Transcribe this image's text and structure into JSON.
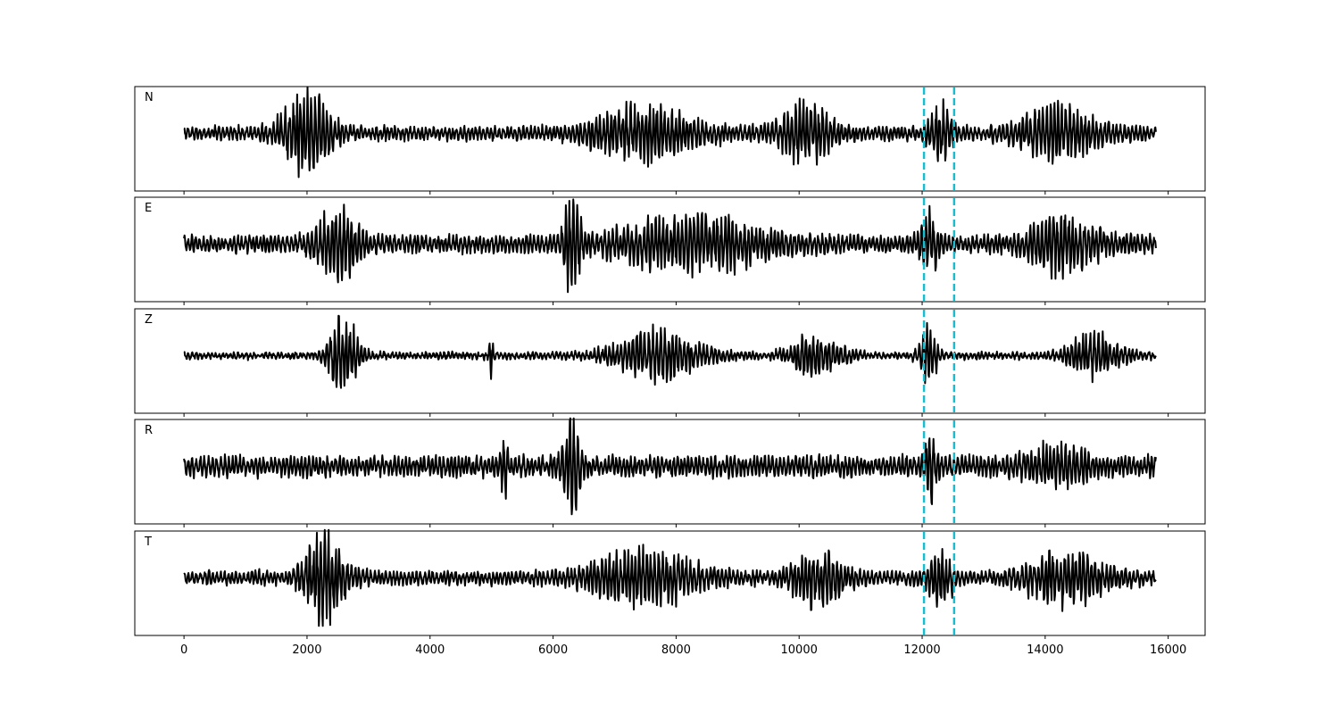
{
  "chart_data": {
    "type": "line",
    "title": "",
    "xlabel": "",
    "ylabel": "",
    "xlim": [
      -800,
      16600
    ],
    "xticks": [
      0,
      2000,
      4000,
      6000,
      8000,
      10000,
      12000,
      14000,
      16000
    ],
    "xtick_labels": [
      "0",
      "2000",
      "4000",
      "6000",
      "8000",
      "10000",
      "12000",
      "14000",
      "16000"
    ],
    "x_range": [
      0,
      15800
    ],
    "grid": false,
    "line_color": "#000000",
    "marker_color": "#17becf",
    "markers": [
      12030,
      12520
    ],
    "panels": [
      {
        "name": "N",
        "noise": 0.13,
        "bursts": [
          {
            "x": 2000,
            "w": 800,
            "amp": 0.75
          },
          {
            "x": 7500,
            "w": 1800,
            "amp": 0.45
          },
          {
            "x": 10100,
            "w": 900,
            "amp": 0.5
          },
          {
            "x": 12300,
            "w": 400,
            "amp": 0.5
          },
          {
            "x": 14200,
            "w": 1400,
            "amp": 0.42
          }
        ]
      },
      {
        "name": "E",
        "noise": 0.17,
        "bursts": [
          {
            "x": 2500,
            "w": 700,
            "amp": 0.6
          },
          {
            "x": 6300,
            "w": 300,
            "amp": 0.85
          },
          {
            "x": 8300,
            "w": 2500,
            "amp": 0.45
          },
          {
            "x": 12100,
            "w": 300,
            "amp": 0.6
          },
          {
            "x": 14300,
            "w": 1200,
            "amp": 0.45
          }
        ]
      },
      {
        "name": "Z",
        "noise": 0.06,
        "bursts": [
          {
            "x": 2600,
            "w": 500,
            "amp": 0.75
          },
          {
            "x": 5000,
            "w": 80,
            "amp": 0.4
          },
          {
            "x": 7700,
            "w": 1500,
            "amp": 0.45
          },
          {
            "x": 10300,
            "w": 900,
            "amp": 0.4
          },
          {
            "x": 12100,
            "w": 300,
            "amp": 0.5
          },
          {
            "x": 14800,
            "w": 900,
            "amp": 0.4
          }
        ]
      },
      {
        "name": "R",
        "noise": 0.2,
        "bursts": [
          {
            "x": 5200,
            "w": 120,
            "amp": 0.45
          },
          {
            "x": 6300,
            "w": 300,
            "amp": 0.85
          },
          {
            "x": 12150,
            "w": 200,
            "amp": 0.55
          },
          {
            "x": 14200,
            "w": 1000,
            "amp": 0.28
          }
        ]
      },
      {
        "name": "T",
        "noise": 0.13,
        "bursts": [
          {
            "x": 2300,
            "w": 700,
            "amp": 0.8
          },
          {
            "x": 7500,
            "w": 1800,
            "amp": 0.45
          },
          {
            "x": 10300,
            "w": 900,
            "amp": 0.5
          },
          {
            "x": 12300,
            "w": 400,
            "amp": 0.45
          },
          {
            "x": 14300,
            "w": 1400,
            "amp": 0.45
          }
        ]
      }
    ]
  }
}
